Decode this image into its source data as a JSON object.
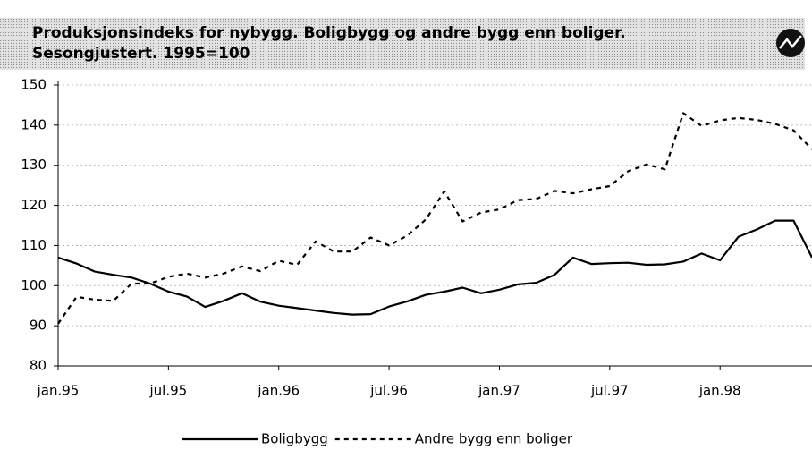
{
  "chart_data": {
    "type": "line",
    "title": [
      "Produksjonsindeks for nybygg. Boligbygg og andre bygg enn boliger.",
      "Sesongjustert. 1995=100"
    ],
    "categories": [
      "jan.95",
      null,
      null,
      null,
      null,
      null,
      "jul.95",
      null,
      null,
      null,
      null,
      null,
      "jan.96",
      null,
      null,
      null,
      null,
      null,
      "jul.96",
      null,
      null,
      null,
      null,
      null,
      "jan.97",
      null,
      null,
      null,
      null,
      null,
      "jul.97",
      null,
      null,
      null,
      null,
      null,
      "jan.98",
      null,
      null,
      null,
      null,
      null
    ],
    "series": [
      {
        "name": "Boligbygg",
        "color": "#000000",
        "line_style": "solid",
        "values": [
          107,
          105.5,
          103.5,
          102.7,
          102,
          100.5,
          98.5,
          97.3,
          94.7,
          96.2,
          98.1,
          96,
          95,
          94.4,
          93.8,
          93.2,
          92.8,
          92.9,
          94.8,
          96.1,
          97.7,
          98.5,
          99.5,
          98.1,
          99,
          100.3,
          100.7,
          102.7,
          107,
          105.4,
          105.6,
          105.7,
          105.2,
          105.3,
          106,
          108,
          106.3,
          112.2,
          114,
          116.2,
          116.2,
          107
        ]
      },
      {
        "name": "Andre bygg enn boliger",
        "color": "#000000",
        "line_style": "dotted",
        "values": [
          90.5,
          97.2,
          96.5,
          96.2,
          100.5,
          100.5,
          102.2,
          103,
          102,
          103,
          104.8,
          103.6,
          106.2,
          105.2,
          111,
          108.5,
          108.5,
          112,
          110,
          112.5,
          116.5,
          123.5,
          116,
          118.2,
          119,
          121.3,
          121.6,
          123.6,
          123,
          124,
          124.8,
          128.5,
          130.2,
          129,
          143,
          139.8,
          141.2,
          141.8,
          141.3,
          140.3,
          138.7,
          134
        ]
      }
    ],
    "ylim": [
      80,
      150
    ],
    "yticks": [
      80,
      90,
      100,
      110,
      120,
      130,
      140,
      150
    ],
    "grid": true
  }
}
